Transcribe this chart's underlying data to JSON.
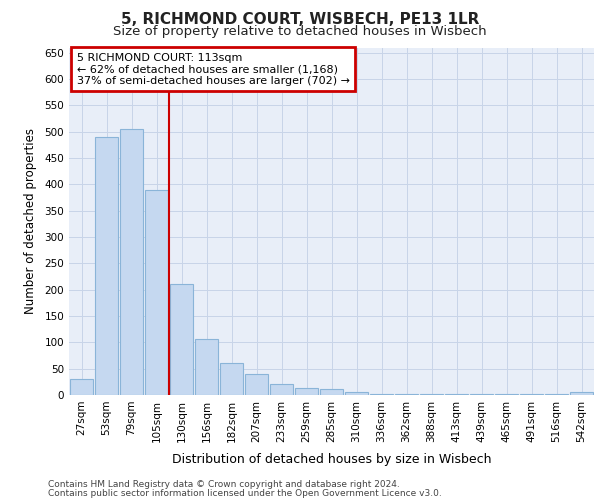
{
  "title_line1": "5, RICHMOND COURT, WISBECH, PE13 1LR",
  "title_line2": "Size of property relative to detached houses in Wisbech",
  "xlabel": "Distribution of detached houses by size in Wisbech",
  "ylabel": "Number of detached properties",
  "footer_line1": "Contains HM Land Registry data © Crown copyright and database right 2024.",
  "footer_line2": "Contains public sector information licensed under the Open Government Licence v3.0.",
  "categories": [
    "27sqm",
    "53sqm",
    "79sqm",
    "105sqm",
    "130sqm",
    "156sqm",
    "182sqm",
    "207sqm",
    "233sqm",
    "259sqm",
    "285sqm",
    "310sqm",
    "336sqm",
    "362sqm",
    "388sqm",
    "413sqm",
    "439sqm",
    "465sqm",
    "491sqm",
    "516sqm",
    "542sqm"
  ],
  "values": [
    30,
    490,
    505,
    390,
    210,
    107,
    60,
    40,
    20,
    13,
    12,
    5,
    2,
    2,
    2,
    2,
    1,
    1,
    1,
    1,
    5
  ],
  "bar_color": "#c5d8f0",
  "bar_edge_color": "#8ab4d8",
  "grid_color": "#c8d4e8",
  "background_color": "#e8eef8",
  "fig_background": "#ffffff",
  "annotation_text": "5 RICHMOND COURT: 113sqm\n← 62% of detached houses are smaller (1,168)\n37% of semi-detached houses are larger (702) →",
  "annotation_box_color": "#ffffff",
  "annotation_box_edge": "#cc0000",
  "vline_color": "#cc0000",
  "vline_x": 3.5,
  "ylim": [
    0,
    660
  ],
  "yticks": [
    0,
    50,
    100,
    150,
    200,
    250,
    300,
    350,
    400,
    450,
    500,
    550,
    600,
    650
  ],
  "title1_fontsize": 11,
  "title2_fontsize": 9.5,
  "ylabel_fontsize": 8.5,
  "xlabel_fontsize": 9,
  "tick_fontsize": 7.5,
  "annot_fontsize": 8,
  "footer_fontsize": 6.5
}
